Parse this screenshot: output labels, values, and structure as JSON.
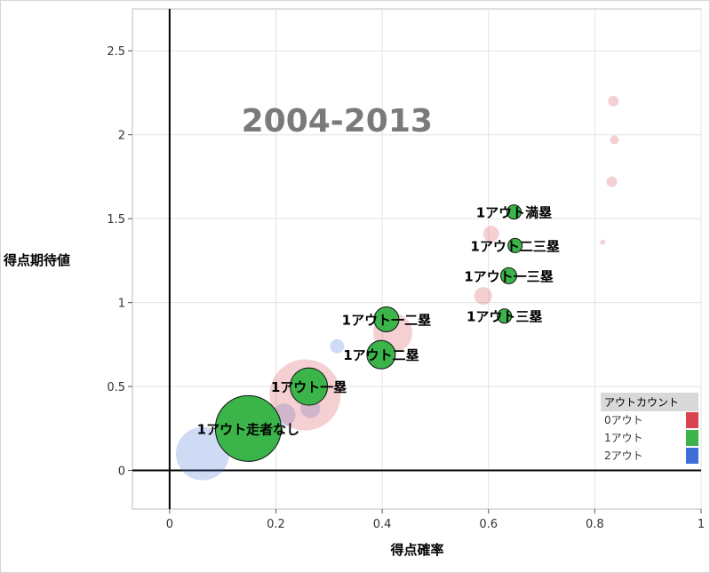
{
  "chart_data": {
    "type": "scatter",
    "subtype": "bubble",
    "title": "2004-2013",
    "xlabel": "得点確率",
    "ylabel": "得点期待値",
    "xlim": [
      -0.07,
      1.0
    ],
    "ylim": [
      -0.23,
      2.75
    ],
    "xticks": [
      "0",
      "0.2",
      "0.4",
      "0.6",
      "0.8",
      "1"
    ],
    "yticks": [
      "0",
      "0.5",
      "1",
      "1.5",
      "2",
      "2.5"
    ],
    "grid": true,
    "legend_position": "bottom-right",
    "legend_title": "アウトカウント",
    "series": [
      {
        "name": "0アウト",
        "color": "#d9434f",
        "points": [
          {
            "x": 0.255,
            "y": 0.45,
            "size": 40
          },
          {
            "x": 0.42,
            "y": 0.82,
            "size": 22
          },
          {
            "x": 0.59,
            "y": 1.04,
            "size": 10
          },
          {
            "x": 0.605,
            "y": 1.41,
            "size": 9
          },
          {
            "x": 0.835,
            "y": 2.2,
            "size": 6
          },
          {
            "x": 0.837,
            "y": 1.97,
            "size": 5
          },
          {
            "x": 0.832,
            "y": 1.72,
            "size": 6
          },
          {
            "x": 0.815,
            "y": 1.36,
            "size": 3
          }
        ]
      },
      {
        "name": "1アウト",
        "color": "#3bb44a",
        "points": [
          {
            "x": 0.148,
            "y": 0.25,
            "size": 37,
            "label": "1アウト走者なし"
          },
          {
            "x": 0.262,
            "y": 0.5,
            "size": 21,
            "label": "1アウト一塁"
          },
          {
            "x": 0.398,
            "y": 0.69,
            "size": 16,
            "label": "1アウト二塁"
          },
          {
            "x": 0.408,
            "y": 0.9,
            "size": 14,
            "label": "1アウト一二塁"
          },
          {
            "x": 0.63,
            "y": 0.92,
            "size": 8,
            "label": "1アウト三塁"
          },
          {
            "x": 0.638,
            "y": 1.16,
            "size": 9,
            "label": "1アウト一三塁"
          },
          {
            "x": 0.65,
            "y": 1.34,
            "size": 8,
            "label": "1アウト二三塁"
          },
          {
            "x": 0.648,
            "y": 1.54,
            "size": 8,
            "label": "1アウト満塁"
          }
        ]
      },
      {
        "name": "2アウト",
        "color": "#3e6fd8",
        "points": [
          {
            "x": 0.062,
            "y": 0.1,
            "size": 30
          },
          {
            "x": 0.215,
            "y": 0.33,
            "size": 13
          },
          {
            "x": 0.265,
            "y": 0.37,
            "size": 11
          },
          {
            "x": 0.315,
            "y": 0.74,
            "size": 8
          }
        ]
      }
    ]
  }
}
